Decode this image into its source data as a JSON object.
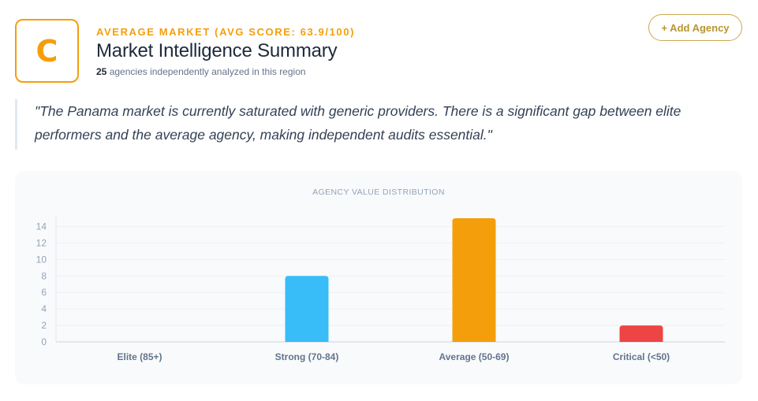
{
  "header": {
    "grade": "C",
    "eyebrow": "AVERAGE MARKET (AVG SCORE: 63.9/100)",
    "title": "Market Intelligence Summary",
    "agency_count": "25",
    "subline_text": "agencies independently analyzed in this region",
    "add_button_label": "+ Add Agency"
  },
  "quote": "\"The Panama market is currently saturated with generic providers. There is a significant gap between elite performers and the average agency, making independent audits essential.\"",
  "colors": {
    "accent": "#f59e0b",
    "button_border": "#c9a84c"
  },
  "chart_data": {
    "type": "bar",
    "title": "AGENCY VALUE DISTRIBUTION",
    "categories": [
      "Elite (85+)",
      "Strong (70-84)",
      "Average (50-69)",
      "Critical (<50)"
    ],
    "values": [
      0,
      8,
      15,
      2
    ],
    "bar_colors": [
      "#22c55e",
      "#38bdf8",
      "#f59e0b",
      "#ef4444"
    ],
    "ylim": [
      0,
      15
    ],
    "yticks": [
      0,
      2,
      4,
      6,
      8,
      10,
      12,
      14
    ],
    "xlabel": "",
    "ylabel": "",
    "grid": true,
    "legend": false
  }
}
